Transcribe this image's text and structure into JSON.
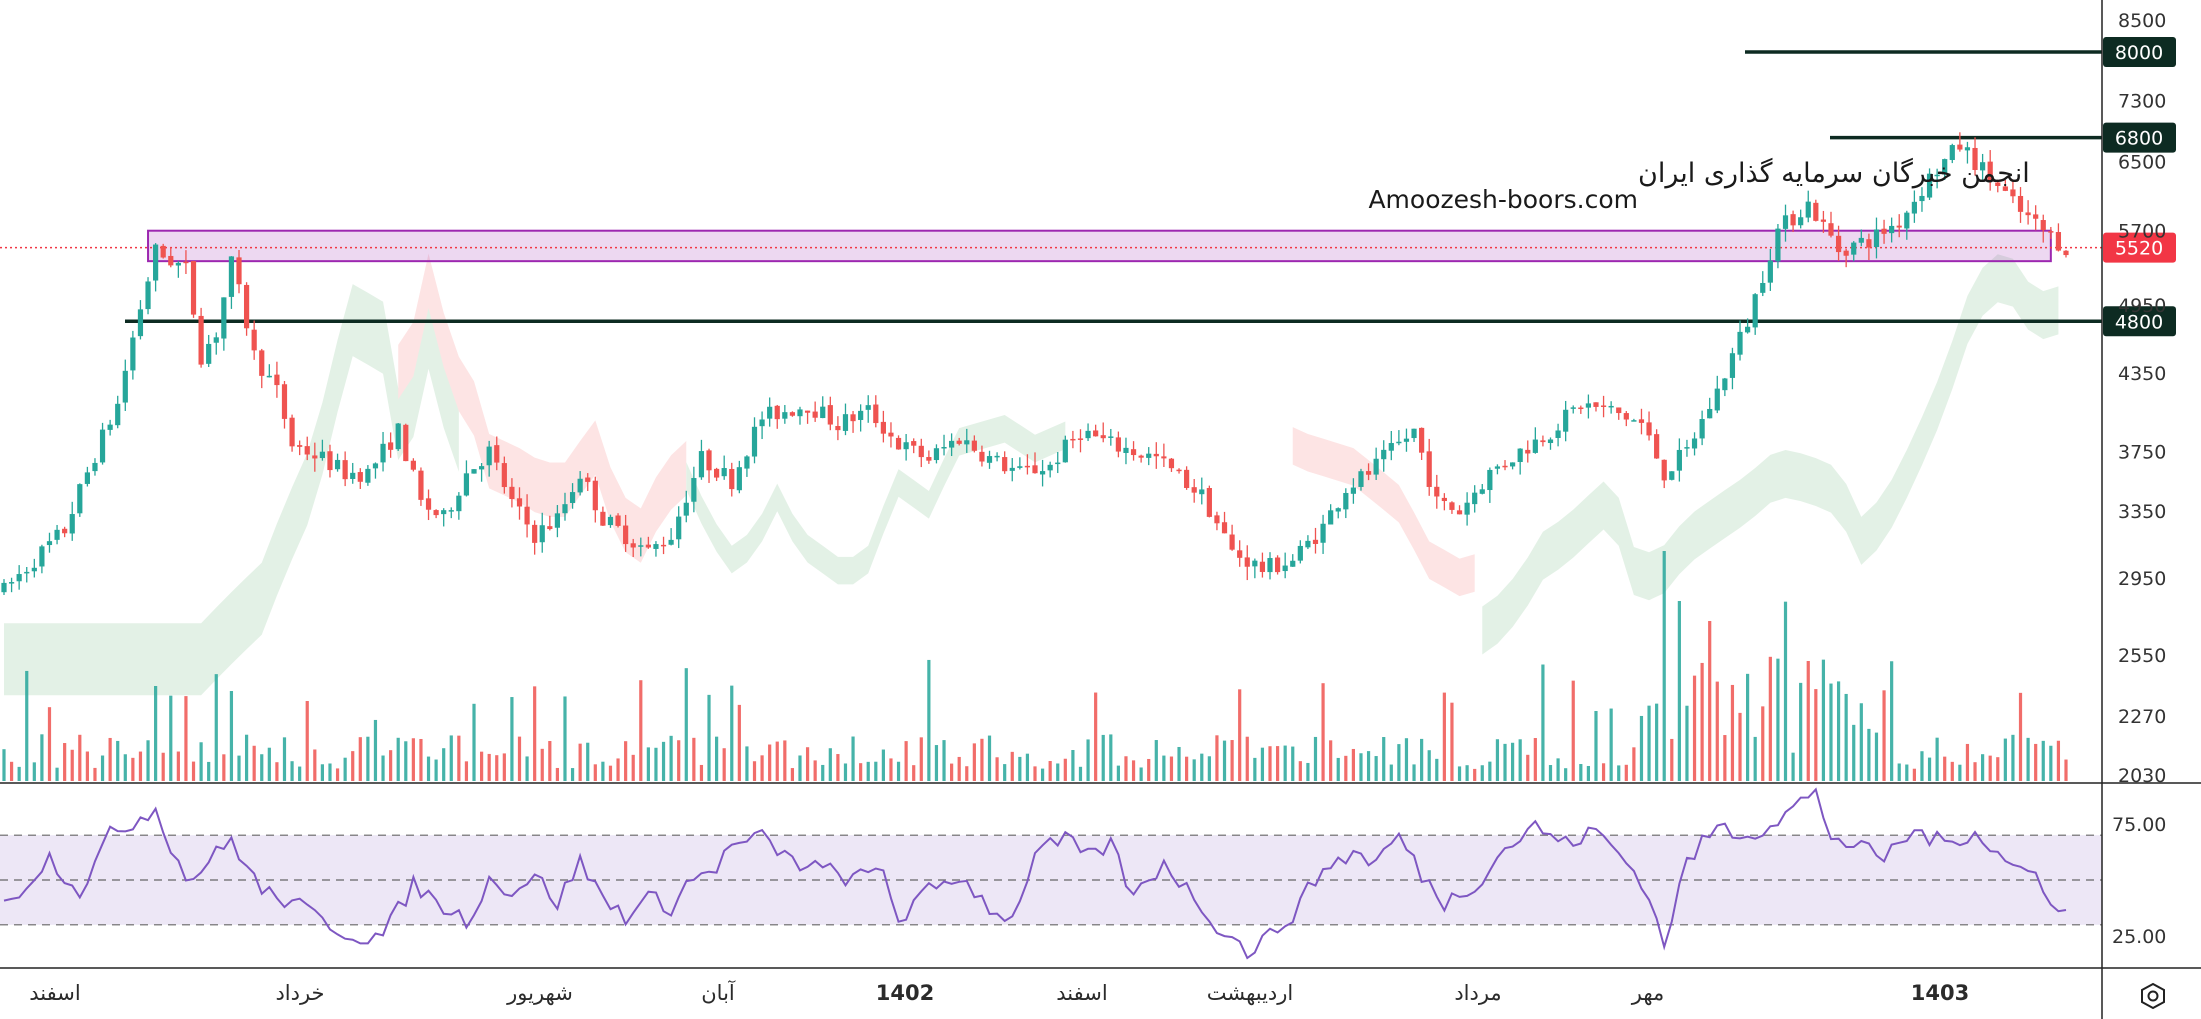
{
  "watermark": {
    "title": "انجمن خبرگان سرمایه گذاری ایران",
    "site": "Amoozesh-boors.com"
  },
  "colors": {
    "up": "#26a69a",
    "down": "#ef5350",
    "level_line": "#0d2b22",
    "current_price": "#f23645",
    "zone": "#9c27b0",
    "cloud_bull": "#e3f1e6",
    "cloud_bear": "#fde4e4",
    "rsi_line": "#7e57c2",
    "rsi_band": "#ede7f6"
  },
  "chart_data": [
    {
      "type": "candlestick",
      "scale": "log",
      "ylim": [
        2030,
        9000
      ],
      "price_ticks": [
        "8500",
        "7300",
        "6500",
        "5700",
        "4950",
        "4350",
        "3750",
        "3350",
        "2950",
        "2550",
        "2270",
        "2030"
      ],
      "x_ticks": [
        {
          "label": "اسفند",
          "bold": false
        },
        {
          "label": "خرداد",
          "bold": false
        },
        {
          "label": "شهریور",
          "bold": false
        },
        {
          "label": "آبان",
          "bold": false
        },
        {
          "label": "1402",
          "bold": true
        },
        {
          "label": "اسفند",
          "bold": false
        },
        {
          "label": "اردیبهشت",
          "bold": false
        },
        {
          "label": "مرداد",
          "bold": false
        },
        {
          "label": "مهر",
          "bold": false
        },
        {
          "label": "1403",
          "bold": true
        }
      ],
      "levels": [
        {
          "label": "8000",
          "value": 8000
        },
        {
          "label": "6800",
          "value": 6800
        },
        {
          "label": "4800",
          "value": 4800
        }
      ],
      "current_price": {
        "label": "5520",
        "value": 5520
      },
      "support_zone": [
        5380,
        5700
      ],
      "price_path": [
        [
          0,
          2880
        ],
        [
          8,
          3230
        ],
        [
          15,
          4100
        ],
        [
          20,
          5480
        ],
        [
          24,
          5300
        ],
        [
          26,
          4500
        ],
        [
          28,
          4700
        ],
        [
          30,
          5350
        ],
        [
          33,
          4500
        ],
        [
          36,
          4200
        ],
        [
          38,
          3800
        ],
        [
          42,
          3700
        ],
        [
          45,
          3600
        ],
        [
          48,
          3600
        ],
        [
          52,
          3900
        ],
        [
          55,
          3400
        ],
        [
          58,
          3300
        ],
        [
          61,
          3600
        ],
        [
          64,
          3750
        ],
        [
          67,
          3400
        ],
        [
          70,
          3200
        ],
        [
          73,
          3300
        ],
        [
          76,
          3600
        ],
        [
          79,
          3300
        ],
        [
          82,
          3200
        ],
        [
          85,
          3100
        ],
        [
          88,
          3200
        ],
        [
          92,
          3700
        ],
        [
          96,
          3550
        ],
        [
          100,
          4000
        ],
        [
          106,
          4100
        ],
        [
          110,
          3950
        ],
        [
          114,
          4050
        ],
        [
          118,
          3800
        ],
        [
          122,
          3700
        ],
        [
          126,
          3850
        ],
        [
          130,
          3700
        ],
        [
          134,
          3600
        ],
        [
          138,
          3650
        ],
        [
          142,
          3900
        ],
        [
          146,
          3800
        ],
        [
          152,
          3700
        ],
        [
          158,
          3450
        ],
        [
          162,
          3100
        ],
        [
          166,
          3000
        ],
        [
          170,
          3050
        ],
        [
          174,
          3250
        ],
        [
          177,
          3500
        ],
        [
          180,
          3600
        ],
        [
          183,
          3750
        ],
        [
          186,
          3900
        ],
        [
          189,
          3400
        ],
        [
          192,
          3350
        ],
        [
          196,
          3600
        ],
        [
          200,
          3750
        ],
        [
          204,
          3900
        ],
        [
          208,
          4100
        ],
        [
          212,
          4050
        ],
        [
          216,
          3950
        ],
        [
          219,
          3600
        ],
        [
          222,
          3750
        ],
        [
          226,
          4200
        ],
        [
          230,
          4800
        ],
        [
          234,
          5700
        ],
        [
          238,
          6000
        ],
        [
          242,
          5500
        ],
        [
          246,
          5600
        ],
        [
          250,
          5800
        ],
        [
          254,
          6300
        ],
        [
          258,
          6700
        ],
        [
          262,
          6300
        ],
        [
          266,
          5900
        ],
        [
          269,
          5700
        ],
        [
          272,
          5520
        ]
      ],
      "volume_note": "volume histogram at bottom of price pane"
    },
    {
      "type": "line",
      "series": [
        {
          "name": "",
          "indicator": "RSI"
        }
      ],
      "ylim": [
        15,
        95
      ],
      "y_ticks": [
        "75.00",
        "25.00"
      ],
      "bands": [
        30,
        50,
        70
      ],
      "rsi_path": [
        [
          0,
          38
        ],
        [
          6,
          60
        ],
        [
          10,
          45
        ],
        [
          14,
          70
        ],
        [
          18,
          78
        ],
        [
          20,
          82
        ],
        [
          24,
          50
        ],
        [
          26,
          55
        ],
        [
          30,
          68
        ],
        [
          34,
          45
        ],
        [
          38,
          40
        ],
        [
          42,
          32
        ],
        [
          46,
          25
        ],
        [
          50,
          25
        ],
        [
          54,
          48
        ],
        [
          58,
          38
        ],
        [
          61,
          32
        ],
        [
          64,
          50
        ],
        [
          67,
          45
        ],
        [
          70,
          52
        ],
        [
          73,
          40
        ],
        [
          76,
          58
        ],
        [
          79,
          42
        ],
        [
          82,
          34
        ],
        [
          85,
          42
        ],
        [
          88,
          38
        ],
        [
          90,
          48
        ],
        [
          94,
          56
        ],
        [
          96,
          65
        ],
        [
          100,
          69
        ],
        [
          104,
          58
        ],
        [
          108,
          55
        ],
        [
          112,
          50
        ],
        [
          116,
          55
        ],
        [
          118,
          32
        ],
        [
          122,
          45
        ],
        [
          126,
          52
        ],
        [
          130,
          38
        ],
        [
          133,
          32
        ],
        [
          136,
          62
        ],
        [
          140,
          68
        ],
        [
          143,
          60
        ],
        [
          146,
          66
        ],
        [
          149,
          42
        ],
        [
          153,
          58
        ],
        [
          157,
          42
        ],
        [
          160,
          30
        ],
        [
          164,
          18
        ],
        [
          167,
          25
        ],
        [
          170,
          35
        ],
        [
          174,
          55
        ],
        [
          178,
          62
        ],
        [
          181,
          58
        ],
        [
          184,
          70
        ],
        [
          187,
          52
        ],
        [
          190,
          40
        ],
        [
          194,
          48
        ],
        [
          198,
          64
        ],
        [
          202,
          74
        ],
        [
          206,
          66
        ],
        [
          210,
          72
        ],
        [
          213,
          62
        ],
        [
          216,
          50
        ],
        [
          219,
          22
        ],
        [
          222,
          58
        ],
        [
          226,
          74
        ],
        [
          230,
          70
        ],
        [
          234,
          77
        ],
        [
          237,
          85
        ],
        [
          239,
          88
        ],
        [
          241,
          70
        ],
        [
          244,
          65
        ],
        [
          248,
          60
        ],
        [
          252,
          72
        ],
        [
          256,
          66
        ],
        [
          260,
          72
        ],
        [
          264,
          58
        ],
        [
          268,
          52
        ],
        [
          271,
          38
        ],
        [
          272,
          35
        ]
      ]
    }
  ]
}
